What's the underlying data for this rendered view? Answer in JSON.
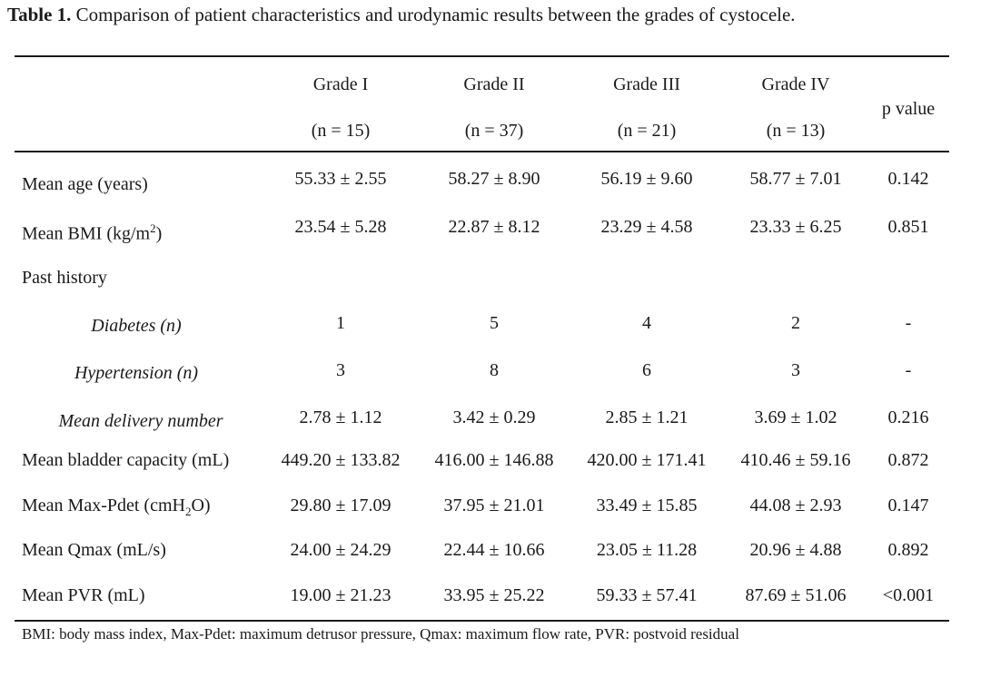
{
  "caption": {
    "label": "Table 1.",
    "text": " Comparison of patient characteristics and urodynamic results between the grades of cystocele."
  },
  "columns": [
    {
      "grade": "Grade I",
      "n": "(n = 15)"
    },
    {
      "grade": "Grade II",
      "n": "(n = 37)"
    },
    {
      "grade": "Grade III",
      "n": "(n = 21)"
    },
    {
      "grade": "Grade IV",
      "n": "(n = 13)"
    }
  ],
  "pvalue_header": "p value",
  "rows": [
    {
      "label": "Mean age (years)",
      "cells": [
        "55.33 ± 2.55",
        "58.27 ± 8.90",
        "56.19 ± 9.60",
        "58.77 ± 7.01"
      ],
      "p": "0.142"
    },
    {
      "label_pre": "Mean BMI (kg/m",
      "label_sup": "2",
      "label_post": ")",
      "cells": [
        "23.54 ± 5.28",
        "22.87 ± 8.12",
        "23.29 ± 4.58",
        "23.33 ± 6.25"
      ],
      "p": "0.851"
    },
    {
      "label": "Past history"
    },
    {
      "label": "Diabetes (n)",
      "cells": [
        "1",
        "5",
        "4",
        "2"
      ],
      "p": "-"
    },
    {
      "label": "Hypertension (n)",
      "cells": [
        "3",
        "8",
        "6",
        "3"
      ],
      "p": "-"
    },
    {
      "label": "Mean delivery number",
      "cells": [
        "2.78 ± 1.12",
        "3.42 ± 0.29",
        "2.85 ± 1.21",
        "3.69 ± 1.02"
      ],
      "p": "0.216"
    },
    {
      "label": "Mean bladder capacity (mL)",
      "cells": [
        "449.20 ± 133.82",
        "416.00 ± 146.88",
        "420.00 ± 171.41",
        "410.46 ± 59.16"
      ],
      "p": "0.872"
    },
    {
      "label_pre": "Mean Max-Pdet (cmH",
      "label_sub": "2",
      "label_post": "O)",
      "cells": [
        "29.80 ± 17.09",
        "37.95 ± 21.01",
        "33.49 ± 15.85",
        "44.08 ± 2.93"
      ],
      "p": "0.147"
    },
    {
      "label": "Mean Qmax (mL/s)",
      "cells": [
        "24.00 ± 24.29",
        "22.44 ± 10.66",
        "23.05 ± 11.28",
        "20.96 ± 4.88"
      ],
      "p": "0.892"
    },
    {
      "label": "Mean PVR (mL)",
      "cells": [
        "19.00 ± 21.23",
        "33.95 ± 25.22",
        "59.33 ± 57.41",
        "87.69 ± 51.06"
      ],
      "p": "<0.001"
    }
  ],
  "footnote": "BMI: body mass index, Max-Pdet: maximum detrusor pressure, Qmax: maximum flow rate, PVR: postvoid residual"
}
